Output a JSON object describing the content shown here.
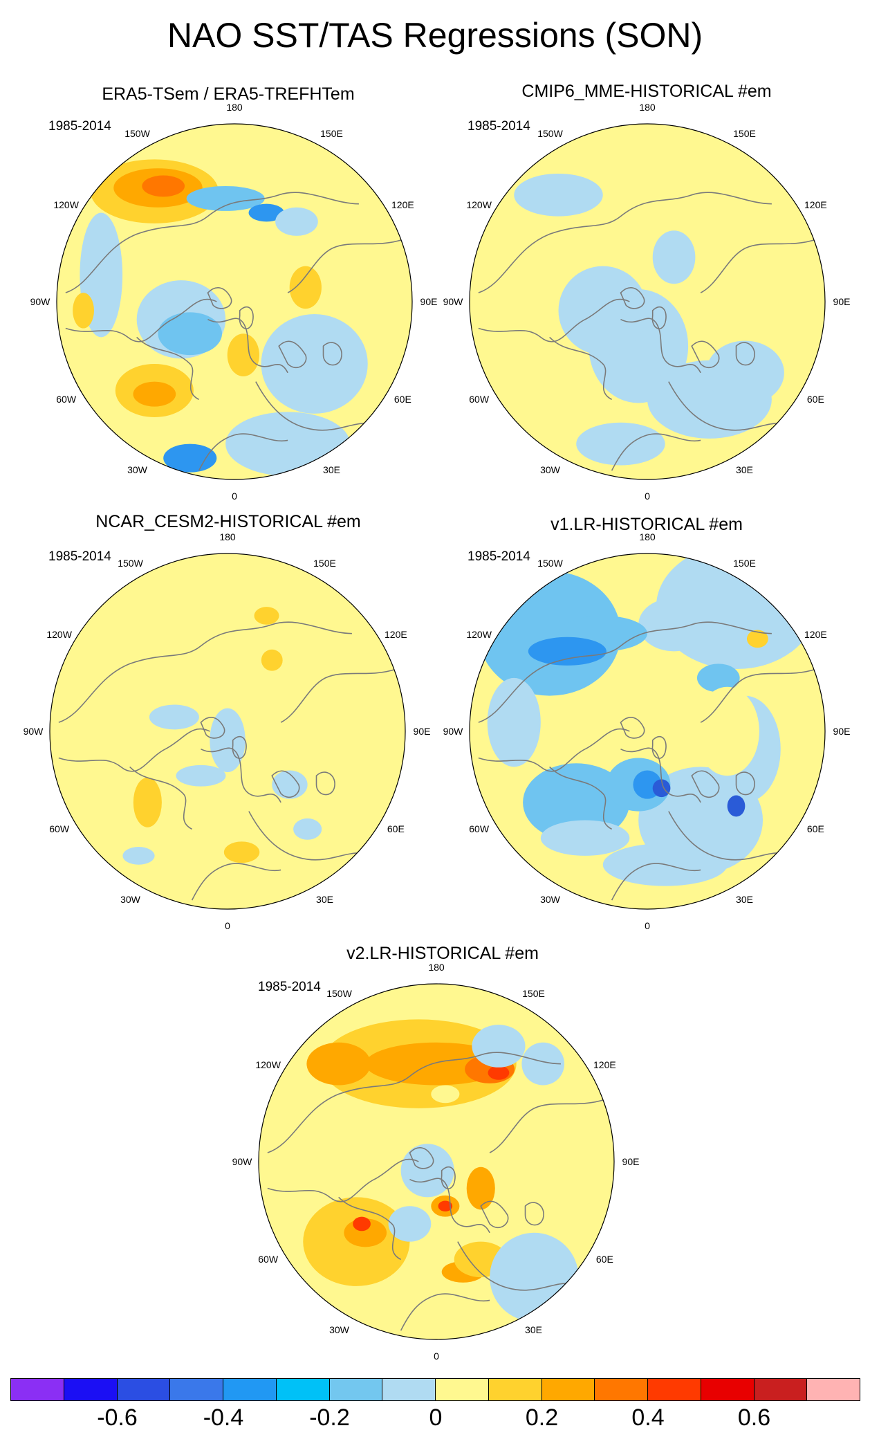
{
  "title": "NAO SST/TAS Regressions (SON)",
  "panels": [
    {
      "title": "ERA5-TSem / ERA5-TREFHTem",
      "period": "1985-2014"
    },
    {
      "title": "CMIP6_MME-HISTORICAL  #em",
      "period": "1985-2014"
    },
    {
      "title": "NCAR_CESM2-HISTORICAL  #em",
      "period": "1985-2014"
    },
    {
      "title": "v1.LR-HISTORICAL  #em",
      "period": "1985-2014"
    },
    {
      "title": "v2.LR-HISTORICAL  #em",
      "period": "1985-2014"
    }
  ],
  "lon_labels": {
    "top": "180",
    "bottom": "0",
    "upper_left": "150W",
    "upper_right": "150E",
    "mid_upper_left": "120W",
    "mid_upper_right": "120E",
    "left": "90W",
    "right": "90E",
    "mid_lower_left": "60W",
    "mid_lower_right": "60E",
    "lower_left": "30W",
    "lower_right": "30E"
  },
  "colors": {
    "land_outline": "#7a7a7a",
    "neutral": "#fff890",
    "light_blue": "#b0dbf2",
    "blue": "#6fc4f0",
    "mid_blue": "#2d96f0",
    "deep_blue": "#2a5bd7",
    "light_orange": "#ffd22e",
    "orange": "#ffa800",
    "dark_orange": "#ff7700",
    "red": "#ff3a00"
  },
  "colorbar": {
    "colors": [
      "#8b2ff4",
      "#1b0ff4",
      "#2b4ee3",
      "#3a78ea",
      "#2198f3",
      "#00c1f7",
      "#73c7ef",
      "#b0dbf2",
      "#fff890",
      "#ffd22e",
      "#ffa800",
      "#ff7700",
      "#ff3a00",
      "#e80000",
      "#c91f1f",
      "#ffb3b3"
    ],
    "labels": [
      "-0.6",
      "-0.4",
      "-0.2",
      "0",
      "0.2",
      "0.4",
      "0.6"
    ]
  }
}
